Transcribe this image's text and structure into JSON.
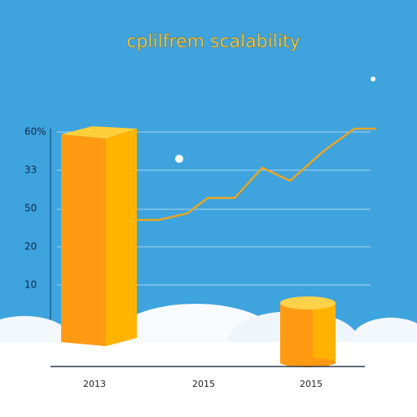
{
  "title": "cplilfrem scalability",
  "y_axis_labels": [
    "60%",
    "33",
    "50",
    "20",
    "10"
  ],
  "x_axis_labels": [
    "2013",
    "2015",
    "2015"
  ]
}
